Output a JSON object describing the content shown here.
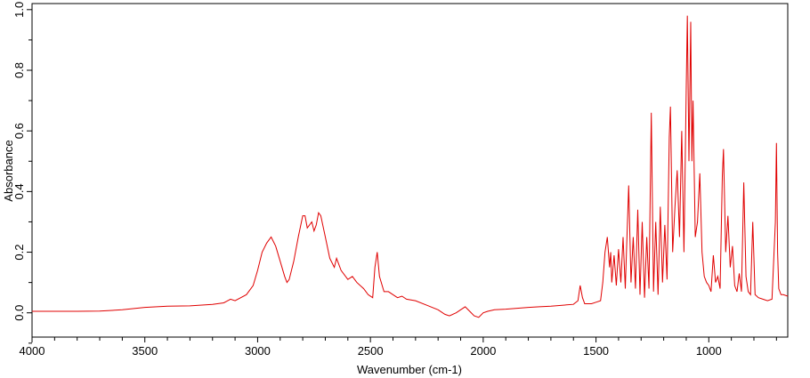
{
  "chart_data": {
    "type": "line",
    "title": "",
    "xlabel": "Wavenumber (cm-1)",
    "ylabel": "Absorbance",
    "xlim": [
      4000,
      650
    ],
    "ylim": [
      -0.08,
      1.02
    ],
    "x_reversed": true,
    "grid": false,
    "legend": "none",
    "x_ticks": [
      4000,
      3500,
      3000,
      2500,
      2000,
      1500,
      1000
    ],
    "x_tick_labels": [
      "4000",
      "3500",
      "3000",
      "2500",
      "2000",
      "1500",
      "1000"
    ],
    "y_ticks": [
      0.0,
      0.2,
      0.4,
      0.6,
      0.8,
      1.0
    ],
    "y_tick_labels": [
      "0.0",
      "0.2",
      "0.4",
      "0.6",
      "0.8",
      "1.0"
    ],
    "series": [
      {
        "color": "#e00000",
        "points": [
          [
            4000,
            0.005
          ],
          [
            3800,
            0.005
          ],
          [
            3700,
            0.006
          ],
          [
            3600,
            0.01
          ],
          [
            3500,
            0.018
          ],
          [
            3400,
            0.022
          ],
          [
            3300,
            0.023
          ],
          [
            3200,
            0.028
          ],
          [
            3150,
            0.033
          ],
          [
            3120,
            0.045
          ],
          [
            3100,
            0.04
          ],
          [
            3050,
            0.06
          ],
          [
            3020,
            0.09
          ],
          [
            3000,
            0.14
          ],
          [
            2980,
            0.2
          ],
          [
            2960,
            0.23
          ],
          [
            2940,
            0.25
          ],
          [
            2920,
            0.22
          ],
          [
            2900,
            0.17
          ],
          [
            2880,
            0.12
          ],
          [
            2870,
            0.1
          ],
          [
            2860,
            0.11
          ],
          [
            2840,
            0.17
          ],
          [
            2820,
            0.25
          ],
          [
            2800,
            0.32
          ],
          [
            2790,
            0.32
          ],
          [
            2780,
            0.28
          ],
          [
            2760,
            0.3
          ],
          [
            2750,
            0.27
          ],
          [
            2740,
            0.29
          ],
          [
            2730,
            0.33
          ],
          [
            2720,
            0.32
          ],
          [
            2700,
            0.25
          ],
          [
            2680,
            0.18
          ],
          [
            2660,
            0.15
          ],
          [
            2650,
            0.18
          ],
          [
            2630,
            0.14
          ],
          [
            2600,
            0.11
          ],
          [
            2580,
            0.12
          ],
          [
            2560,
            0.1
          ],
          [
            2530,
            0.08
          ],
          [
            2510,
            0.06
          ],
          [
            2490,
            0.05
          ],
          [
            2480,
            0.15
          ],
          [
            2470,
            0.2
          ],
          [
            2460,
            0.12
          ],
          [
            2440,
            0.07
          ],
          [
            2420,
            0.07
          ],
          [
            2400,
            0.06
          ],
          [
            2380,
            0.05
          ],
          [
            2360,
            0.055
          ],
          [
            2340,
            0.045
          ],
          [
            2300,
            0.04
          ],
          [
            2250,
            0.025
          ],
          [
            2200,
            0.01
          ],
          [
            2170,
            -0.005
          ],
          [
            2150,
            -0.01
          ],
          [
            2120,
            0.0
          ],
          [
            2100,
            0.01
          ],
          [
            2080,
            0.02
          ],
          [
            2060,
            0.005
          ],
          [
            2040,
            -0.01
          ],
          [
            2020,
            -0.015
          ],
          [
            2000,
            0.0
          ],
          [
            1980,
            0.005
          ],
          [
            1950,
            0.01
          ],
          [
            1900,
            0.012
          ],
          [
            1850,
            0.015
          ],
          [
            1800,
            0.018
          ],
          [
            1750,
            0.02
          ],
          [
            1700,
            0.022
          ],
          [
            1650,
            0.025
          ],
          [
            1600,
            0.028
          ],
          [
            1580,
            0.04
          ],
          [
            1570,
            0.09
          ],
          [
            1560,
            0.05
          ],
          [
            1550,
            0.03
          ],
          [
            1520,
            0.03
          ],
          [
            1500,
            0.035
          ],
          [
            1480,
            0.04
          ],
          [
            1470,
            0.1
          ],
          [
            1460,
            0.2
          ],
          [
            1450,
            0.25
          ],
          [
            1440,
            0.15
          ],
          [
            1435,
            0.2
          ],
          [
            1430,
            0.1
          ],
          [
            1420,
            0.19
          ],
          [
            1410,
            0.09
          ],
          [
            1400,
            0.21
          ],
          [
            1390,
            0.1
          ],
          [
            1380,
            0.25
          ],
          [
            1370,
            0.08
          ],
          [
            1365,
            0.2
          ],
          [
            1355,
            0.42
          ],
          [
            1345,
            0.1
          ],
          [
            1335,
            0.25
          ],
          [
            1325,
            0.08
          ],
          [
            1315,
            0.34
          ],
          [
            1305,
            0.06
          ],
          [
            1295,
            0.3
          ],
          [
            1285,
            0.05
          ],
          [
            1275,
            0.25
          ],
          [
            1265,
            0.08
          ],
          [
            1255,
            0.66
          ],
          [
            1245,
            0.07
          ],
          [
            1235,
            0.3
          ],
          [
            1225,
            0.06
          ],
          [
            1215,
            0.35
          ],
          [
            1205,
            0.1
          ],
          [
            1195,
            0.29
          ],
          [
            1185,
            0.11
          ],
          [
            1175,
            0.58
          ],
          [
            1170,
            0.68
          ],
          [
            1160,
            0.2
          ],
          [
            1150,
            0.35
          ],
          [
            1140,
            0.47
          ],
          [
            1130,
            0.25
          ],
          [
            1120,
            0.6
          ],
          [
            1110,
            0.2
          ],
          [
            1100,
            0.75
          ],
          [
            1095,
            0.98
          ],
          [
            1088,
            0.5
          ],
          [
            1080,
            0.96
          ],
          [
            1075,
            0.5
          ],
          [
            1070,
            0.7
          ],
          [
            1060,
            0.25
          ],
          [
            1050,
            0.3
          ],
          [
            1040,
            0.46
          ],
          [
            1030,
            0.2
          ],
          [
            1020,
            0.12
          ],
          [
            1010,
            0.1
          ],
          [
            1000,
            0.09
          ],
          [
            990,
            0.07
          ],
          [
            980,
            0.19
          ],
          [
            970,
            0.1
          ],
          [
            960,
            0.12
          ],
          [
            950,
            0.08
          ],
          [
            940,
            0.45
          ],
          [
            935,
            0.54
          ],
          [
            925,
            0.2
          ],
          [
            915,
            0.32
          ],
          [
            905,
            0.15
          ],
          [
            895,
            0.22
          ],
          [
            885,
            0.09
          ],
          [
            875,
            0.07
          ],
          [
            865,
            0.13
          ],
          [
            855,
            0.07
          ],
          [
            845,
            0.43
          ],
          [
            835,
            0.12
          ],
          [
            825,
            0.07
          ],
          [
            815,
            0.06
          ],
          [
            805,
            0.3
          ],
          [
            795,
            0.06
          ],
          [
            780,
            0.05
          ],
          [
            760,
            0.045
          ],
          [
            740,
            0.04
          ],
          [
            720,
            0.045
          ],
          [
            705,
            0.3
          ],
          [
            700,
            0.56
          ],
          [
            695,
            0.2
          ],
          [
            690,
            0.08
          ],
          [
            680,
            0.06
          ],
          [
            670,
            0.06
          ],
          [
            650,
            0.055
          ]
        ]
      }
    ]
  }
}
